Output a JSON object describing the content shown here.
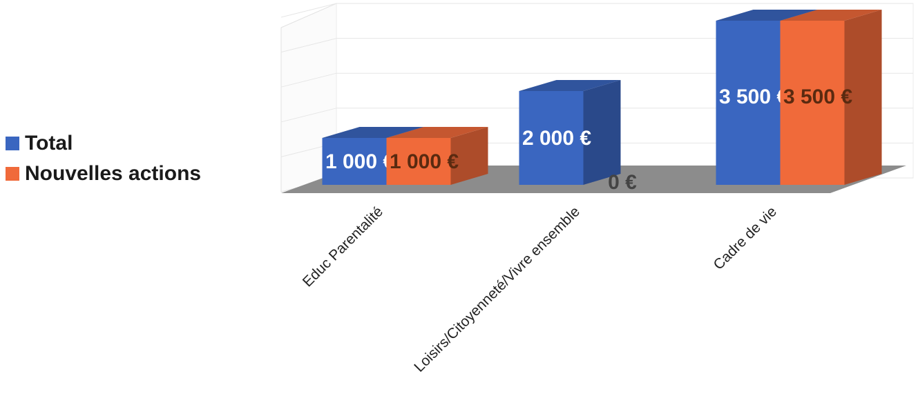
{
  "chart_data": {
    "type": "bar",
    "categories": [
      "Educ Parentalité",
      "Loisirs/Citoyenneté/Vivre ensemble",
      "Cadre de vie"
    ],
    "series": [
      {
        "name": "Total",
        "values": [
          1000,
          2000,
          3500
        ],
        "labels": [
          "1 000 €",
          "2 000 €",
          "3 500 €"
        ],
        "color": "#3a66c0"
      },
      {
        "name": "Nouvelles actions",
        "values": [
          1000,
          0,
          3500
        ],
        "labels": [
          "1 000 €",
          "0 €",
          "3 500 €"
        ],
        "color": "#f06a3a"
      }
    ],
    "ylim": [
      0,
      3500
    ],
    "legend_position": "left",
    "grid": true,
    "three_d": true
  },
  "legend": {
    "items": [
      {
        "label": "Total",
        "color": "#3a66c0"
      },
      {
        "label": "Nouvelles actions",
        "color": "#f06a3a"
      }
    ]
  }
}
